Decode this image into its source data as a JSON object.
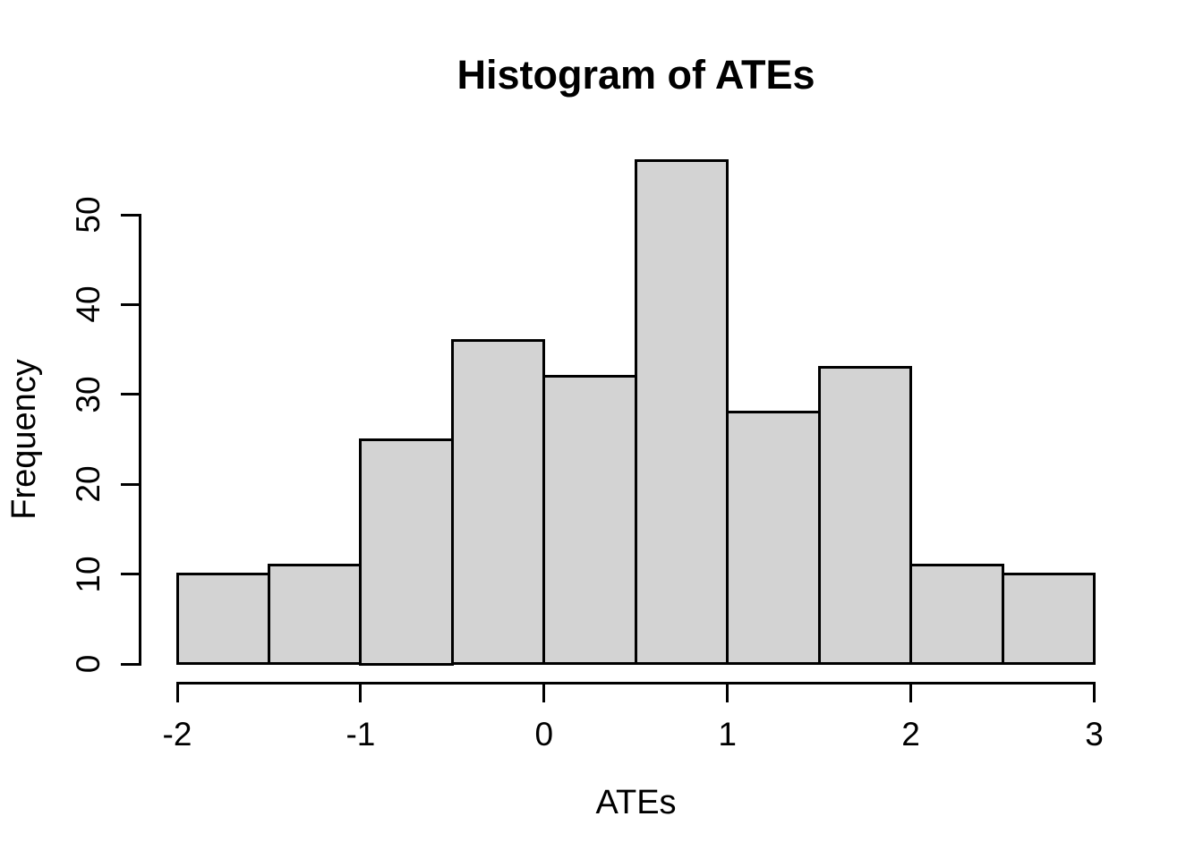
{
  "chart_data": {
    "type": "bar",
    "subtype": "histogram",
    "title": "Histogram of ATEs",
    "xlabel": "ATEs",
    "ylabel": "Frequency",
    "bin_edges": [
      -2,
      -1.5,
      -1,
      -0.5,
      0,
      0.5,
      1,
      1.5,
      2,
      2.5,
      3
    ],
    "values": [
      10,
      11,
      25,
      36,
      32,
      56,
      28,
      33,
      11,
      10
    ],
    "x_ticks": [
      -2,
      -1,
      0,
      1,
      2,
      3
    ],
    "x_tick_labels": [
      "-2",
      "-1",
      "0",
      "1",
      "2",
      "3"
    ],
    "y_ticks": [
      0,
      10,
      20,
      30,
      40,
      50
    ],
    "y_tick_labels": [
      "0",
      "10",
      "20",
      "30",
      "40",
      "50"
    ],
    "xlim": [
      -2,
      3
    ],
    "ylim": [
      0,
      50
    ],
    "grid": false,
    "legend": "none",
    "colors": {
      "bar_fill": "#d3d3d3",
      "bar_border": "#000000",
      "axis": "#000000",
      "text": "#000000",
      "background": "#ffffff"
    }
  }
}
